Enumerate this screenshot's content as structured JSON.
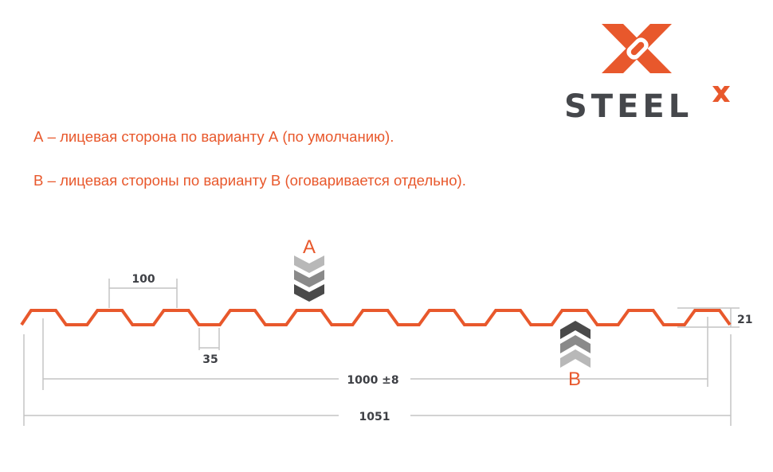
{
  "logo": {
    "text": "STEELX",
    "brand_color": "#e8582c",
    "text_color": "#45474b"
  },
  "legend": {
    "a": "А – лицевая сторона по варианту А (по умолчанию).",
    "b": "В – лицевая стороны по варианту В (оговаривается отдельно)."
  },
  "diagram": {
    "profile_color": "#e8582c",
    "wave_count": 11,
    "face_a_label": "А",
    "face_b_label": "В",
    "dim_pitch": "100",
    "dim_valley": "35",
    "dim_height": "21",
    "dim_useful_width": "1000 ±8",
    "dim_total_width": "1051"
  }
}
